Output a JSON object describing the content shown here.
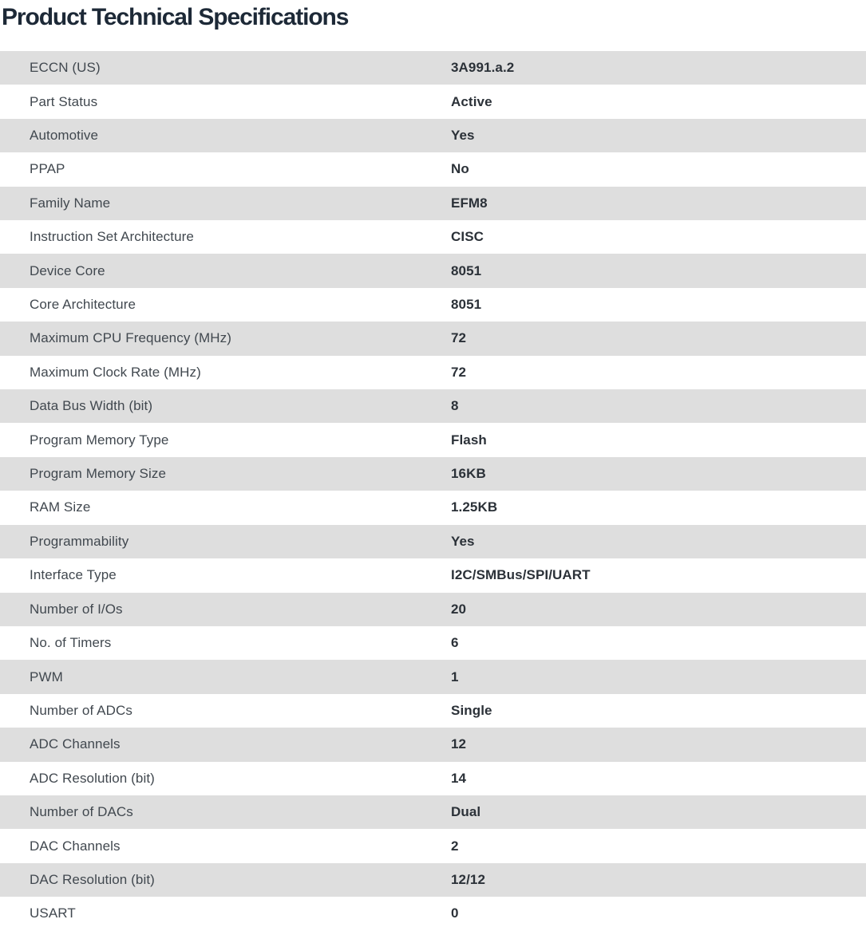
{
  "page": {
    "title": "Product Technical Specifications"
  },
  "colors": {
    "title_text": "#1d2937",
    "label_text": "#41484f",
    "value_text": "#2b3138",
    "row_alt_background": "#dedede",
    "row_background": "#ffffff"
  },
  "spec_table": {
    "rows": [
      {
        "label": "ECCN (US)",
        "value": "3A991.a.2"
      },
      {
        "label": "Part Status",
        "value": "Active"
      },
      {
        "label": "Automotive",
        "value": "Yes"
      },
      {
        "label": "PPAP",
        "value": "No"
      },
      {
        "label": "Family Name",
        "value": "EFM8"
      },
      {
        "label": "Instruction Set Architecture",
        "value": "CISC"
      },
      {
        "label": "Device Core",
        "value": "8051"
      },
      {
        "label": "Core Architecture",
        "value": "8051"
      },
      {
        "label": "Maximum CPU Frequency (MHz)",
        "value": "72"
      },
      {
        "label": "Maximum Clock Rate (MHz)",
        "value": "72"
      },
      {
        "label": "Data Bus Width (bit)",
        "value": "8"
      },
      {
        "label": "Program Memory Type",
        "value": "Flash"
      },
      {
        "label": "Program Memory Size",
        "value": "16KB"
      },
      {
        "label": "RAM Size",
        "value": "1.25KB"
      },
      {
        "label": "Programmability",
        "value": "Yes"
      },
      {
        "label": "Interface Type",
        "value": "I2C/SMBus/SPI/UART"
      },
      {
        "label": "Number of I/Os",
        "value": "20"
      },
      {
        "label": "No. of Timers",
        "value": "6"
      },
      {
        "label": "PWM",
        "value": "1"
      },
      {
        "label": "Number of ADCs",
        "value": "Single"
      },
      {
        "label": "ADC Channels",
        "value": "12"
      },
      {
        "label": "ADC Resolution (bit)",
        "value": "14"
      },
      {
        "label": "Number of DACs",
        "value": "Dual"
      },
      {
        "label": "DAC Channels",
        "value": "2"
      },
      {
        "label": "DAC Resolution (bit)",
        "value": "12/12"
      },
      {
        "label": "USART",
        "value": "0"
      }
    ]
  }
}
